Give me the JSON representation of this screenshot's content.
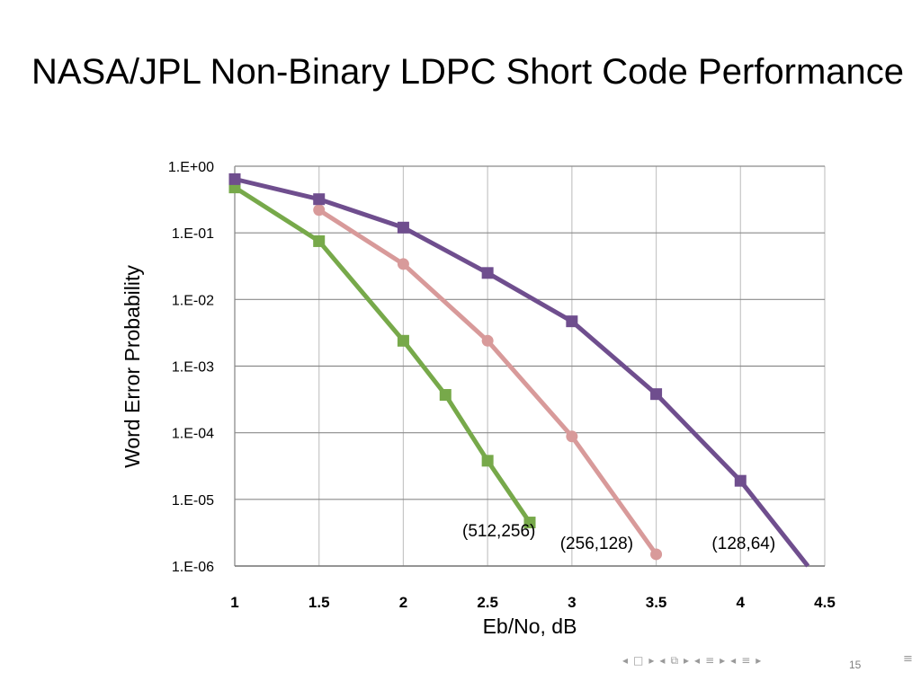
{
  "slide": {
    "title": "NASA/JPL Non-Binary LDPC Short Code Performance",
    "page_number": "15"
  },
  "navigation": {
    "icons": [
      "left-arrow",
      "frame",
      "right-arrow",
      "left-arrow",
      "section",
      "right-arrow",
      "left-arrow",
      "list",
      "right-arrow",
      "left-arrow",
      "list",
      "right-arrow",
      "menu"
    ]
  },
  "chart_data": {
    "type": "line",
    "xlabel": "Eb/No, dB",
    "ylabel": "Word Error Probability",
    "xlim": [
      1,
      4.5
    ],
    "ylim": [
      1e-06,
      1
    ],
    "y_scale": "log",
    "grid": true,
    "x_ticks": [
      "1",
      "1.5",
      "2",
      "2.5",
      "3",
      "3.5",
      "4",
      "4.5"
    ],
    "y_ticks": [
      "1.E+00",
      "1.E-01",
      "1.E-02",
      "1.E-03",
      "1.E-04",
      "1.E-05",
      "1.E-06"
    ],
    "series": [
      {
        "name": "(512,256)",
        "color": "#77a94a",
        "marker": "square",
        "points": [
          [
            1,
            0.48
          ],
          [
            1.5,
            0.075
          ],
          [
            2,
            0.0024
          ],
          [
            2.25,
            0.00037
          ],
          [
            2.5,
            3.8e-05
          ],
          [
            2.75,
            4.5e-06
          ]
        ]
      },
      {
        "name": "(256,128)",
        "color": "#d89a9a",
        "marker": "circle",
        "points": [
          [
            1.5,
            0.22
          ],
          [
            2,
            0.034
          ],
          [
            2.5,
            0.0024
          ],
          [
            3,
            8.8e-05
          ],
          [
            3.5,
            1.5e-06
          ]
        ]
      },
      {
        "name": "(128,64)",
        "color": "#6f4e8e",
        "marker": "square",
        "points": [
          [
            1,
            0.64
          ],
          [
            1.5,
            0.32
          ],
          [
            2,
            0.12
          ],
          [
            2.5,
            0.025
          ],
          [
            3,
            0.0047
          ],
          [
            3.5,
            0.00038
          ],
          [
            4,
            1.9e-05
          ],
          [
            4.4,
            1e-06
          ]
        ],
        "last_point_marker": false
      }
    ],
    "annotations": [
      {
        "text": "(512,256)",
        "x": 2.35,
        "y": 2.8e-06
      },
      {
        "text": "(256,128)",
        "x": 2.93,
        "y": 1.8e-06
      },
      {
        "text": "(128,64)",
        "x": 3.83,
        "y": 1.8e-06
      }
    ]
  }
}
